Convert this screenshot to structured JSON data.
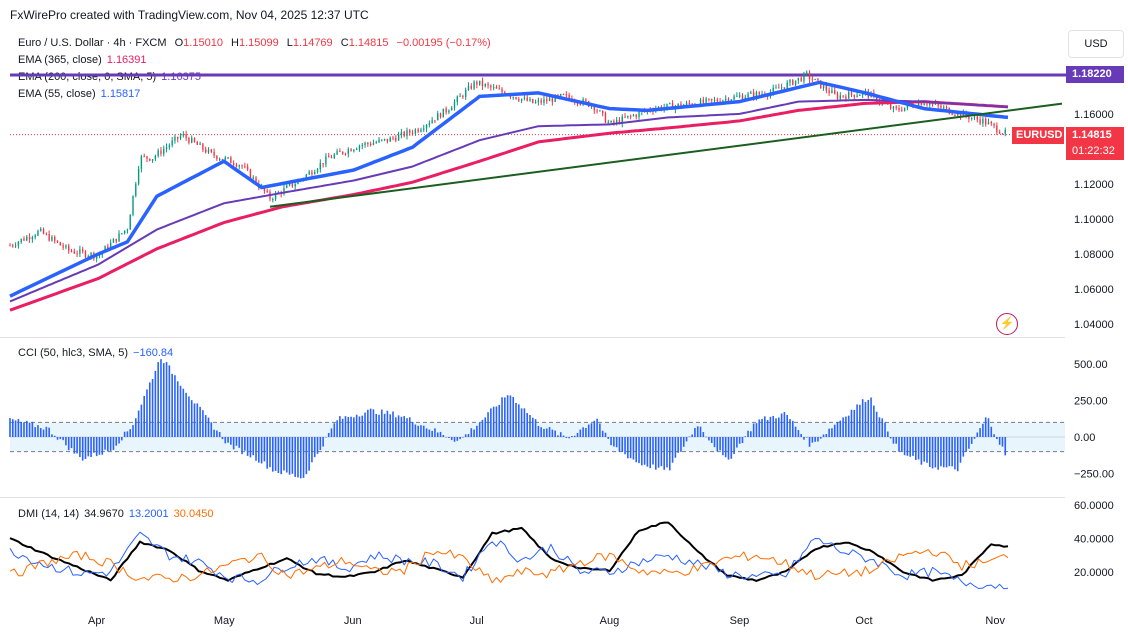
{
  "credit": "FxWirePro created with TradingView.com, Nov 04, 2025 12:37 UTC",
  "currency_button": "USD",
  "symbol_tag": "EURUSD",
  "price_label": "1.14815",
  "countdown": "01:22:32",
  "level_label": "1.18220",
  "colors": {
    "up": "#089981",
    "down": "#f23645",
    "ema365": "#e91e63",
    "ema200": "#673ab7",
    "ema55": "#2962ff",
    "resistance": "#673ab7",
    "trendline": "#1b5e20",
    "cci": "#2962ff",
    "adx": "#000000",
    "di_plus": "#2962ff",
    "di_minus": "#ff6d00"
  },
  "legend": {
    "title": "Euro / U.S. Dollar · 4h · FXCM",
    "o_label": "O",
    "o_value": "1.15010",
    "h_label": "H",
    "h_value": "1.15099",
    "l_label": "L",
    "l_value": "1.14769",
    "c_label": "C",
    "c_value": "1.14815",
    "change": "−0.00195 (−0.17%)",
    "ema365_label": "EMA (365, close)",
    "ema365_value": "1.16391",
    "ema200_label": "EMA (200, close, 0, SMA, 5)",
    "ema200_value": "1.16375",
    "ema55_label": "EMA (55, close)",
    "ema55_value": "1.15817",
    "cci_label": "CCI (50, hlc3, SMA, 5)",
    "cci_value": "−160.84",
    "dmi_label": "DMI (14, 14)",
    "adx_value": "34.9670",
    "plus_value": "13.2001",
    "minus_value": "30.0450"
  },
  "chart_data": [
    {
      "type": "candlestick",
      "title": "Euro / U.S. Dollar · 4h · FXCM",
      "x_ticks": [
        "Apr",
        "May",
        "Jun",
        "Jul",
        "Aug",
        "Sep",
        "Oct",
        "Nov"
      ],
      "y_ticks": [
        "1.04000",
        "1.06000",
        "1.08000",
        "1.10000",
        "1.12000",
        "1.16000"
      ],
      "ylim": [
        1.035,
        1.195
      ],
      "last_price": 1.14815,
      "horizontal_level": 1.1822,
      "close_path": {
        "x": [
          "Mar 11",
          "Mar 18",
          "Mar 25",
          "Apr 1",
          "Apr 8",
          "Apr 11",
          "Apr 14",
          "Apr 21",
          "Apr 28",
          "May 5",
          "May 12",
          "May 19",
          "May 26",
          "Jun 2",
          "Jun 9",
          "Jun 16",
          "Jun 23",
          "Jun 30",
          "Jul 7",
          "Jul 14",
          "Jul 21",
          "Jul 28",
          "Aug 1",
          "Aug 11",
          "Aug 18",
          "Aug 25",
          "Sep 1",
          "Sep 8",
          "Sep 17",
          "Sep 24",
          "Oct 1",
          "Oct 8",
          "Oct 15",
          "Oct 22",
          "Oct 29",
          "Nov 4"
        ],
        "y": [
          1.085,
          1.093,
          1.082,
          1.079,
          1.095,
          1.135,
          1.135,
          1.148,
          1.137,
          1.131,
          1.112,
          1.122,
          1.135,
          1.142,
          1.145,
          1.151,
          1.162,
          1.178,
          1.172,
          1.166,
          1.17,
          1.165,
          1.154,
          1.163,
          1.165,
          1.167,
          1.17,
          1.172,
          1.182,
          1.17,
          1.172,
          1.162,
          1.167,
          1.161,
          1.156,
          1.148
        ]
      },
      "series": [
        {
          "name": "EMA (365, close)",
          "x": [
            "Mar 11",
            "Apr 1",
            "Apr 15",
            "May 1",
            "May 15",
            "Jun 1",
            "Jun 15",
            "Jul 1",
            "Jul 15",
            "Aug 1",
            "Aug 15",
            "Sep 1",
            "Sep 15",
            "Oct 1",
            "Oct 15",
            "Nov 4"
          ],
          "values": [
            1.048,
            1.066,
            1.083,
            1.098,
            1.107,
            1.114,
            1.121,
            1.133,
            1.144,
            1.149,
            1.152,
            1.156,
            1.162,
            1.166,
            1.167,
            1.164
          ]
        },
        {
          "name": "EMA (200, close, 0, SMA, 5)",
          "x": [
            "Mar 11",
            "Apr 1",
            "Apr 15",
            "May 1",
            "May 15",
            "Jun 1",
            "Jun 15",
            "Jul 1",
            "Jul 15",
            "Aug 1",
            "Aug 15",
            "Sep 1",
            "Sep 15",
            "Oct 1",
            "Oct 15",
            "Nov 4"
          ],
          "values": [
            1.053,
            1.074,
            1.094,
            1.109,
            1.115,
            1.122,
            1.13,
            1.145,
            1.153,
            1.154,
            1.158,
            1.16,
            1.167,
            1.168,
            1.167,
            1.164
          ]
        },
        {
          "name": "EMA (55, close)",
          "x": [
            "Mar 11",
            "Apr 1",
            "Apr 8",
            "Apr 15",
            "May 1",
            "May 10",
            "Jun 1",
            "Jun 15",
            "Jul 1",
            "Jul 15",
            "Aug 1",
            "Aug 10",
            "Sep 1",
            "Sep 20",
            "Oct 1",
            "Oct 15",
            "Nov 4"
          ],
          "values": [
            1.056,
            1.08,
            1.087,
            1.113,
            1.133,
            1.118,
            1.128,
            1.141,
            1.17,
            1.172,
            1.163,
            1.162,
            1.167,
            1.178,
            1.172,
            1.163,
            1.158
          ]
        }
      ],
      "trendline": {
        "from": [
          "May 12",
          1.107
        ],
        "to": [
          "Nov 4",
          1.163
        ]
      }
    },
    {
      "type": "bar",
      "title": "CCI (50, hlc3, SMA, 5)",
      "y_ticks": [
        "500.00",
        "250.00",
        "0.00",
        "−250.00"
      ],
      "ylim": [
        -320,
        560
      ],
      "bands": [
        100,
        -100
      ],
      "x": [
        "Mar 11",
        "Mar 20",
        "Mar 28",
        "Apr 4",
        "Apr 9",
        "Apr 16",
        "Apr 25",
        "May 2",
        "May 9",
        "May 13",
        "May 20",
        "May 28",
        "Jun 5",
        "Jun 12",
        "Jun 19",
        "Jun 26",
        "Jul 1",
        "Jul 8",
        "Jul 15",
        "Jul 22",
        "Jul 29",
        "Aug 1",
        "Aug 8",
        "Aug 15",
        "Aug 22",
        "Aug 29",
        "Sep 5",
        "Sep 12",
        "Sep 18",
        "Sep 25",
        "Oct 2",
        "Oct 9",
        "Oct 16",
        "Oct 23",
        "Oct 30",
        "Nov 4"
      ],
      "values": [
        120,
        60,
        -150,
        -90,
        70,
        550,
        200,
        -50,
        -150,
        -230,
        -280,
        120,
        180,
        150,
        60,
        -30,
        100,
        300,
        90,
        -10,
        130,
        -50,
        -180,
        -230,
        90,
        -170,
        110,
        160,
        -60,
        120,
        280,
        -100,
        -200,
        -220,
        140,
        -160
      ]
    },
    {
      "type": "line",
      "title": "DMI (14, 14)",
      "y_ticks": [
        "60.0000",
        "40.0000",
        "20.0000"
      ],
      "ylim": [
        4,
        62
      ],
      "x": [
        "Mar 11",
        "Mar 20",
        "Mar 28",
        "Apr 4",
        "Apr 11",
        "Apr 18",
        "Apr 25",
        "May 2",
        "May 9",
        "May 16",
        "May 23",
        "May 30",
        "Jun 6",
        "Jun 13",
        "Jun 20",
        "Jun 27",
        "Jul 4",
        "Jul 11",
        "Jul 18",
        "Jul 25",
        "Aug 1",
        "Aug 8",
        "Aug 15",
        "Aug 22",
        "Aug 29",
        "Sep 5",
        "Sep 12",
        "Sep 19",
        "Sep 26",
        "Oct 3",
        "Oct 10",
        "Oct 17",
        "Oct 24",
        "Oct 31",
        "Nov 4"
      ],
      "series": [
        {
          "name": "ADX",
          "values": [
            40,
            30,
            22,
            15,
            38,
            33,
            21,
            15,
            22,
            28,
            19,
            17,
            20,
            27,
            22,
            17,
            43,
            46,
            28,
            22,
            21,
            45,
            50,
            32,
            18,
            15,
            20,
            34,
            38,
            32,
            20,
            15,
            18,
            37,
            35
          ]
        },
        {
          "name": "+DI",
          "values": [
            33,
            24,
            19,
            20,
            42,
            30,
            26,
            17,
            15,
            24,
            28,
            22,
            30,
            27,
            25,
            17,
            40,
            27,
            35,
            20,
            20,
            26,
            30,
            25,
            19,
            17,
            18,
            40,
            32,
            27,
            18,
            20,
            14,
            12,
            13
          ]
        },
        {
          "name": "−DI",
          "values": [
            18,
            26,
            30,
            25,
            16,
            16,
            18,
            24,
            30,
            18,
            22,
            27,
            20,
            21,
            33,
            28,
            14,
            20,
            19,
            26,
            30,
            21,
            19,
            22,
            28,
            30,
            25,
            18,
            19,
            21,
            30,
            33,
            24,
            26,
            30
          ]
        }
      ]
    }
  ]
}
